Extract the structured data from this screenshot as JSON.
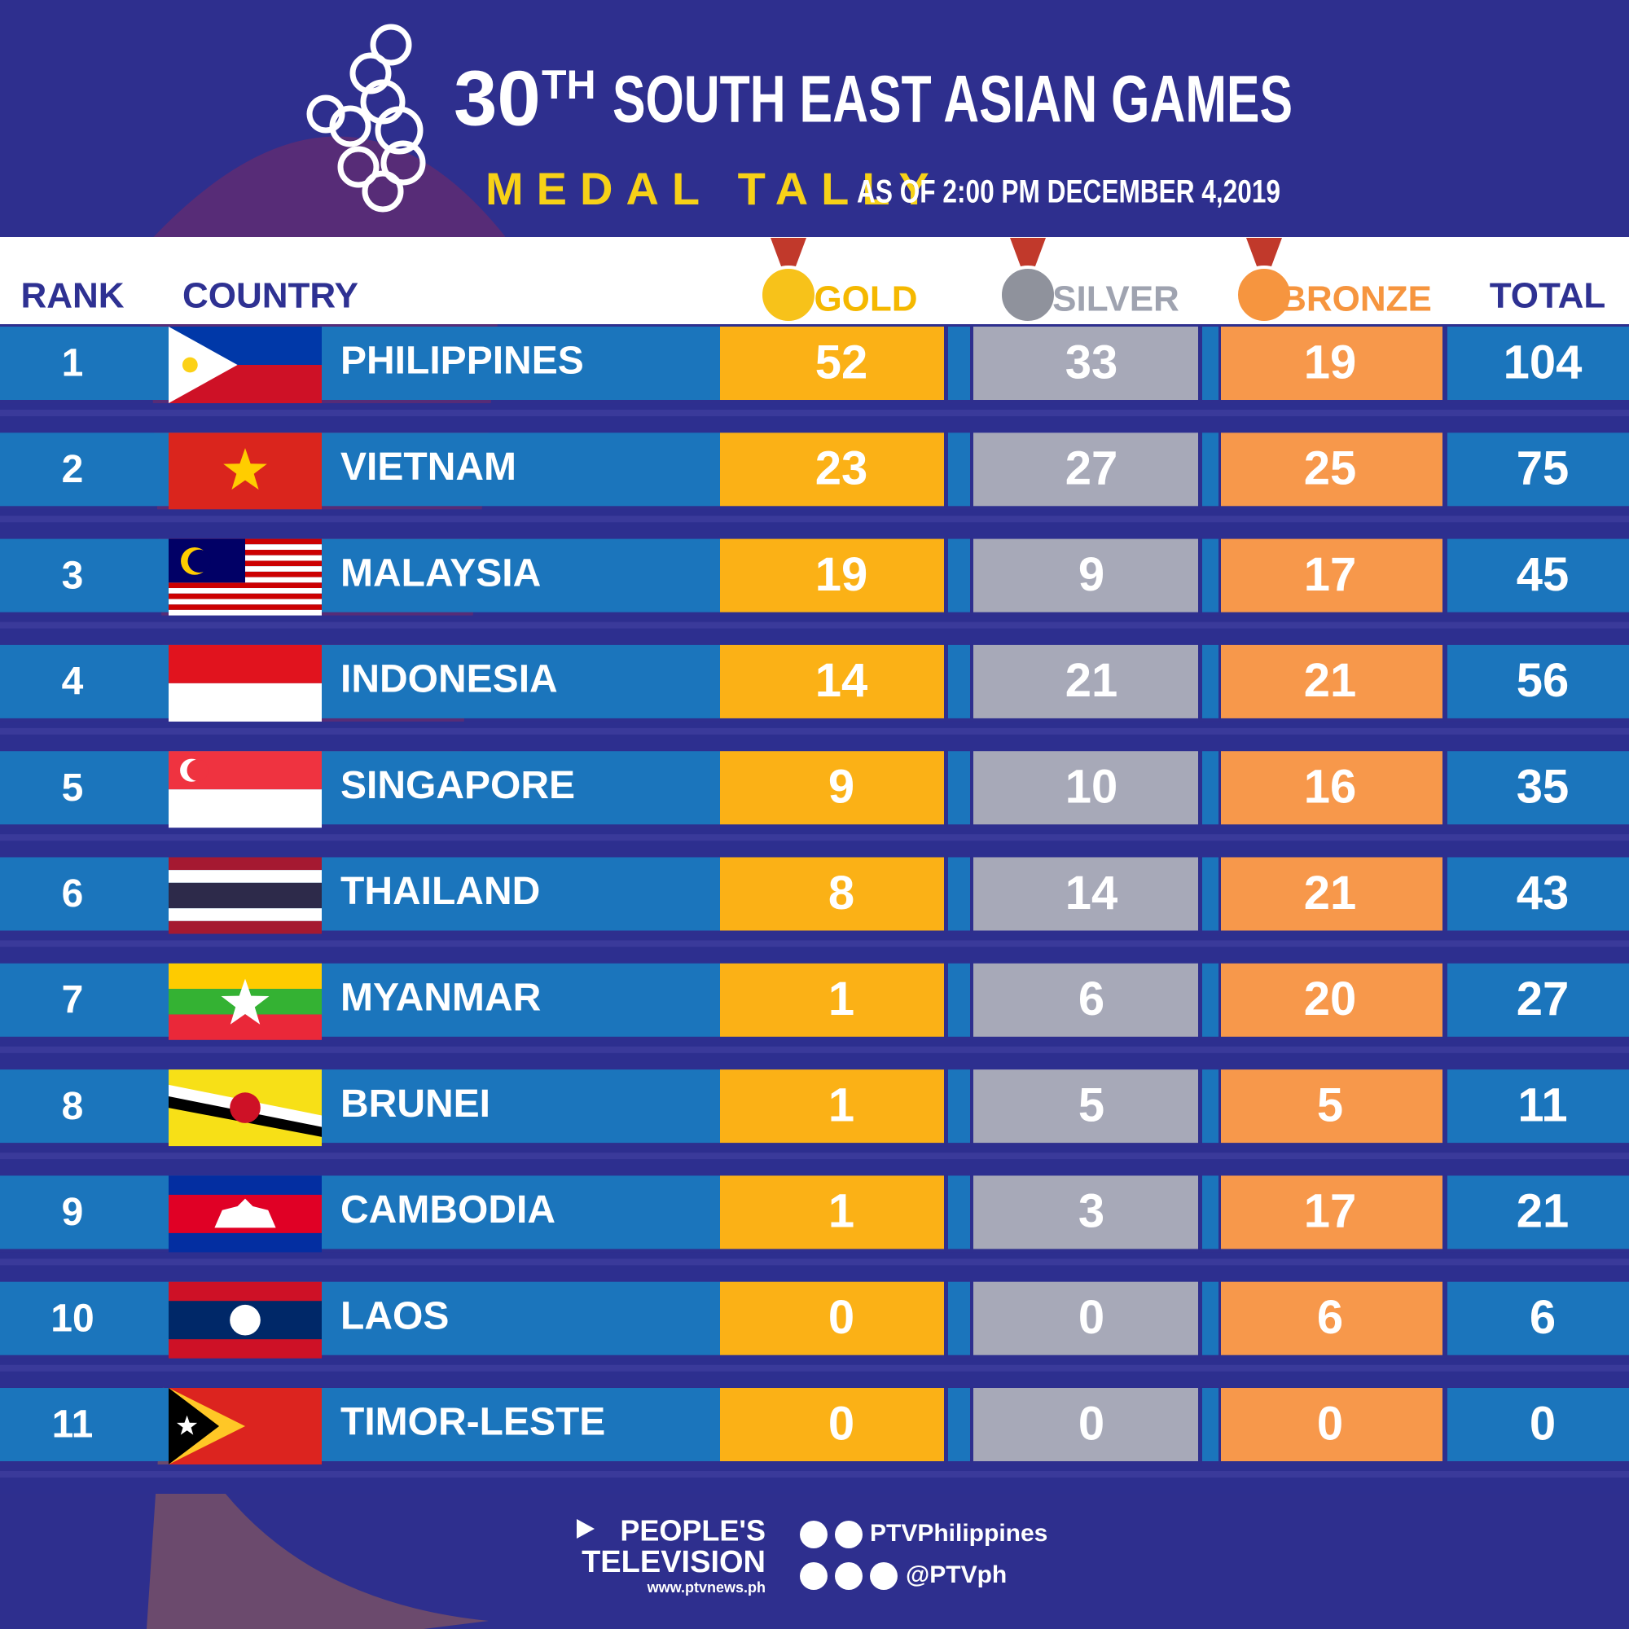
{
  "header": {
    "title_number": "30",
    "title_suffix": "TH",
    "title_rest": "SOUTH EAST ASIAN GAMES",
    "subtitle": "MEDAL TALLY",
    "date": "AS OF 2:00 PM DECEMBER 4,2019"
  },
  "table": {
    "columns": [
      "RANK",
      "COUNTRY",
      "GOLD",
      "SILVER",
      "BRONZE",
      "TOTAL"
    ],
    "rows": [
      [
        "1",
        "PHILIPPINES",
        "52",
        "33",
        "19",
        "104"
      ],
      [
        "2",
        "VIETNAM",
        "23",
        "27",
        "25",
        "75"
      ],
      [
        "3",
        "MALAYSIA",
        "19",
        "9",
        "17",
        "45"
      ],
      [
        "4",
        "INDONESIA",
        "14",
        "21",
        "21",
        "56"
      ],
      [
        "5",
        "SINGAPORE",
        "9",
        "10",
        "16",
        "35"
      ],
      [
        "6",
        "THAILAND",
        "8",
        "14",
        "21",
        "43"
      ],
      [
        "7",
        "MYANMAR",
        "1",
        "6",
        "20",
        "27"
      ],
      [
        "8",
        "BRUNEI",
        "1",
        "5",
        "5",
        "11"
      ],
      [
        "9",
        "CAMBODIA",
        "1",
        "3",
        "17",
        "21"
      ],
      [
        "10",
        "LAOS",
        "0",
        "0",
        "6",
        "6"
      ],
      [
        "11",
        "TIMOR-LESTE",
        "0",
        "0",
        "0",
        "0"
      ]
    ]
  },
  "footer": {
    "brand_line1": "PEOPLE'S",
    "brand_line2": "TELEVISION",
    "website": "www.ptvnews.ph",
    "social_channel": "PTVPhilippines",
    "social_handle": "@PTVph"
  }
}
